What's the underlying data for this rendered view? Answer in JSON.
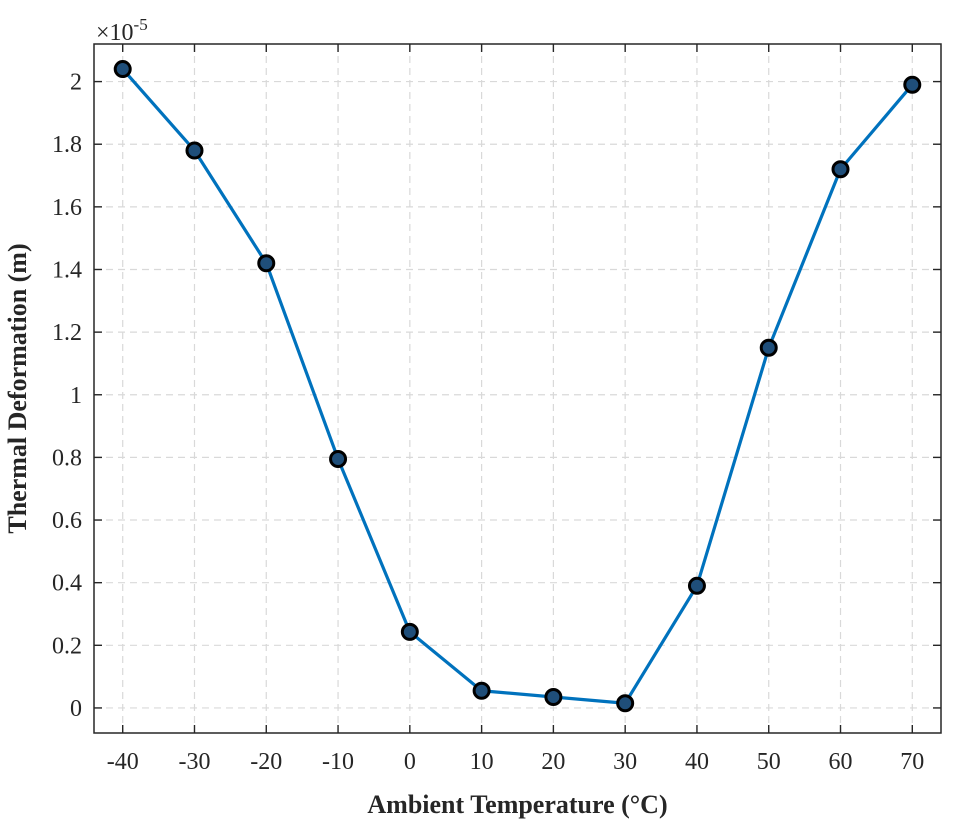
{
  "chart_data": {
    "type": "line",
    "title": "",
    "xlabel": "Ambient Temperature (°C)",
    "ylabel": "Thermal Deformation (m)",
    "y_exponent_label": "×10",
    "y_exponent_power": "-5",
    "x": [
      -40,
      -30,
      -20,
      -10,
      0,
      10,
      20,
      30,
      40,
      50,
      60,
      70
    ],
    "series": [
      {
        "values": [
          2.04,
          1.78,
          1.42,
          0.795,
          0.243,
          0.055,
          0.035,
          0.015,
          0.39,
          1.15,
          1.72,
          1.99
        ],
        "color": "#0072BD",
        "marker_fill": "#1f4e79",
        "marker_edge": "#000000"
      }
    ],
    "xlim": [
      -44,
      74
    ],
    "ylim": [
      -0.08,
      2.12
    ],
    "x_ticks": [
      -40,
      -30,
      -20,
      -10,
      0,
      10,
      20,
      30,
      40,
      50,
      60,
      70
    ],
    "x_tick_labels": [
      "-40",
      "-30",
      "-20",
      "-10",
      "0",
      "10",
      "20",
      "30",
      "40",
      "50",
      "60",
      "70"
    ],
    "y_ticks": [
      0,
      0.2,
      0.4,
      0.6,
      0.8,
      1.0,
      1.2,
      1.4,
      1.6,
      1.8,
      2.0
    ],
    "y_tick_labels": [
      "0",
      "0.2",
      "0.4",
      "0.6",
      "0.8",
      "1",
      "1.2",
      "1.4",
      "1.6",
      "1.8",
      "2"
    ],
    "grid": true,
    "legend": false
  }
}
